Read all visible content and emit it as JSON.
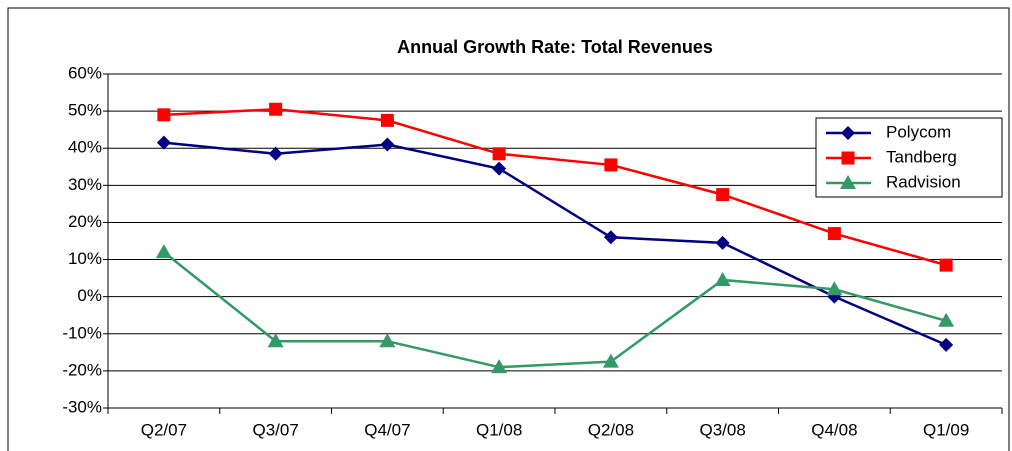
{
  "chart_data": {
    "type": "line",
    "title": "Annual Growth Rate:  Total Revenues",
    "categories": [
      "Q2/07",
      "Q3/07",
      "Q4/07",
      "Q1/08",
      "Q2/08",
      "Q3/08",
      "Q4/08",
      "Q1/09"
    ],
    "series": [
      {
        "name": "Polycom",
        "color": "#000080",
        "marker": "diamond",
        "values": [
          41.5,
          38.5,
          41,
          34.5,
          16,
          14.5,
          0,
          -13
        ]
      },
      {
        "name": "Tandberg",
        "color": "#ff0000",
        "marker": "square",
        "values": [
          49,
          50.5,
          47.5,
          38.5,
          35.5,
          27.5,
          17,
          8.5
        ]
      },
      {
        "name": "Radvision",
        "color": "#339966",
        "marker": "triangle",
        "values": [
          12,
          -12,
          -12,
          -19,
          -17.5,
          4.5,
          2,
          -6.5
        ]
      }
    ],
    "ylim": [
      -30,
      60
    ],
    "yticks": [
      {
        "value": -30,
        "label": "-30%"
      },
      {
        "value": -20,
        "label": "-20%"
      },
      {
        "value": -10,
        "label": "-10%"
      },
      {
        "value": 0,
        "label": "0%"
      },
      {
        "value": 10,
        "label": "10%"
      },
      {
        "value": 20,
        "label": "20%"
      },
      {
        "value": 30,
        "label": "30%"
      },
      {
        "value": 40,
        "label": "40%"
      },
      {
        "value": 50,
        "label": "50%"
      },
      {
        "value": 60,
        "label": "60%"
      }
    ],
    "grid": true,
    "legend": "top-right"
  }
}
